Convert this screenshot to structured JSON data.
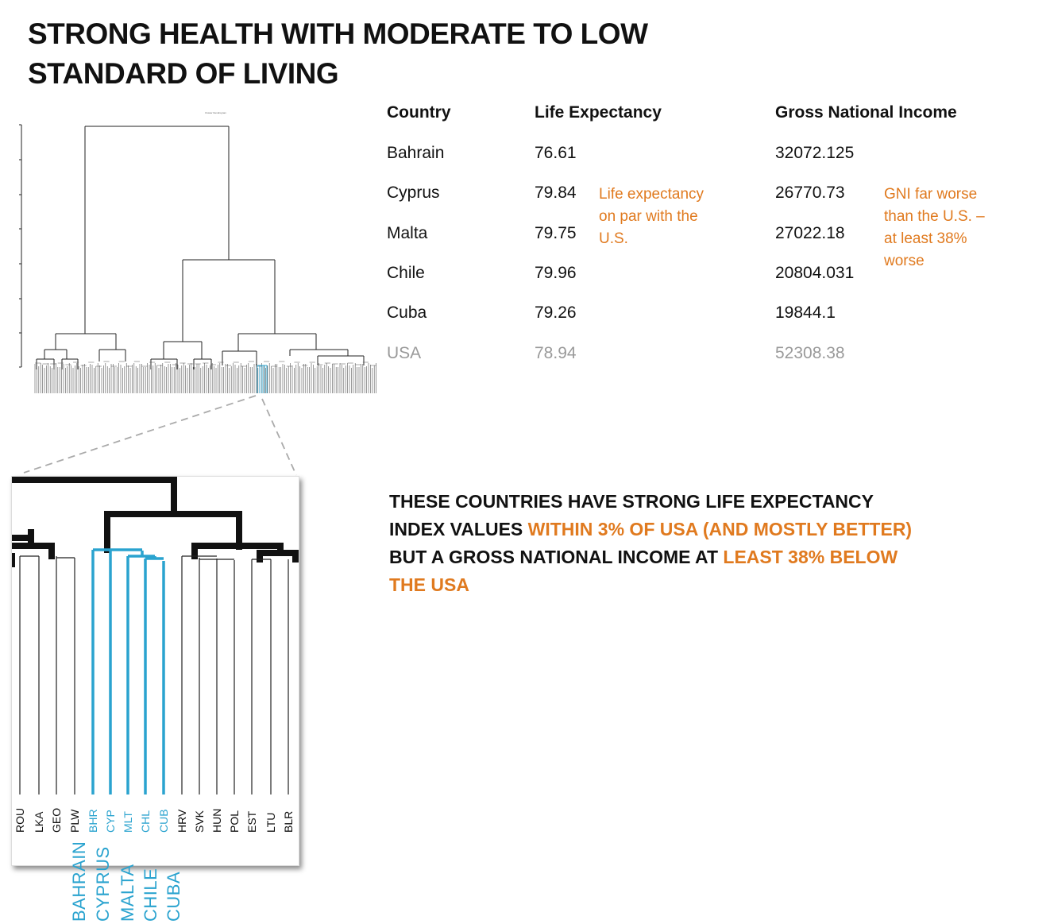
{
  "title": {
    "line1": "STRONG HEALTH WITH MODERATE TO LOW",
    "line2": "STANDARD OF LIVING"
  },
  "table": {
    "headers": {
      "country": "Country",
      "life": "Life Expectancy",
      "gni": "Gross National  Income"
    },
    "rows": [
      {
        "country": "Bahrain",
        "life": "76.61",
        "gni": "32072.125"
      },
      {
        "country": "Cyprus",
        "life": "79.84",
        "gni": "26770.73"
      },
      {
        "country": "Malta",
        "life": "79.75",
        "gni": "27022.18"
      },
      {
        "country": "Chile",
        "life": "79.96",
        "gni": "20804.031"
      },
      {
        "country": "Cuba",
        "life": "79.26",
        "gni": "19844.1"
      },
      {
        "country": "USA",
        "life": "78.94",
        "gni": "52308.38"
      }
    ]
  },
  "notes": {
    "life": [
      "Life expectancy",
      "on par with the",
      "U.S."
    ],
    "gni": [
      "GNI  far worse",
      "than the U.S. –",
      "at least 38%",
      "worse"
    ]
  },
  "summary": {
    "l1": "THESE COUNTRIES HAVE STRONG LIFE EXPECTANCY",
    "l2a": "INDEX VALUES ",
    "l2b": "WITHIN 3% OF USA (AND MOSTLY BETTER)",
    "l3a": "BUT A GROSS NATIONAL INCOME AT ",
    "l3b": "LEAST 38% BELOW",
    "l4": "THE USA"
  },
  "zoom": {
    "codes": [
      "ROU",
      "LKA",
      "GEO",
      "PLW",
      "BHR",
      "CYP",
      "MLT",
      "CHL",
      "CUB",
      "HRV",
      "SVK",
      "HUN",
      "POL",
      "EST",
      "LTU",
      "BLR"
    ],
    "highlighted": [
      "BHR",
      "CYP",
      "MLT",
      "CHL",
      "CUB"
    ],
    "names": [
      "BAHRAIN",
      "CYPRUS",
      "MALTA",
      "CHILE",
      "CUBA"
    ]
  },
  "colors": {
    "accent_orange": "#e07a1f",
    "highlight_blue": "#2aa3cf",
    "muted_gray": "#9a9a9a"
  }
}
